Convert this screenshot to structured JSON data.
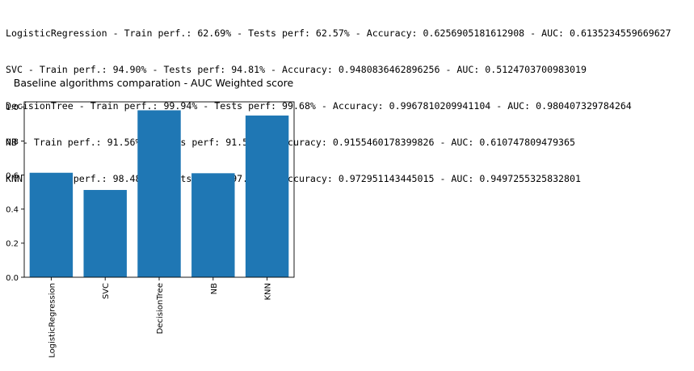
{
  "output": {
    "lines": [
      "LogisticRegression - Train perf.: 62.69% - Tests perf: 62.57% - Accuracy: 0.6256905181612908 - AUC: 0.6135234559669627",
      "SVC - Train perf.: 94.90% - Tests perf: 94.81% - Accuracy: 0.9480836462896256 - AUC: 0.5124703700983019",
      "DecisionTree - Train perf.: 99.94% - Tests perf: 99.68% - Accuracy: 0.9967810209941104 - AUC: 0.980407329784264",
      "NB - Train perf.: 91.56% - Tests perf: 91.55% - Accuracy: 0.9155460178399826 - AUC: 0.610747809479365",
      "KNN - Train perf.: 98.48% - Tests perf: 97.30% - Accuracy: 0.972951143445015 - AUC: 0.9497255325832801"
    ]
  },
  "chart_data": {
    "type": "bar",
    "title": "Baseline algorithms comparation - AUC Weighted score",
    "categories": [
      "LogisticRegression",
      "SVC",
      "DecisionTree",
      "NB",
      "KNN"
    ],
    "values": [
      0.6135234559669627,
      0.5124703700983019,
      0.980407329784264,
      0.610747809479365,
      0.9497255325832801
    ],
    "ylim": [
      0,
      1.03
    ],
    "yticks": [
      0.0,
      0.2,
      0.4,
      0.6,
      0.8,
      1.0
    ],
    "ytick_labels": [
      "0.0",
      "0.2",
      "0.4",
      "0.6",
      "0.8",
      "1.0"
    ],
    "xlabel": "",
    "ylabel": "",
    "grid": false,
    "bar_color": "#1f77b4"
  }
}
